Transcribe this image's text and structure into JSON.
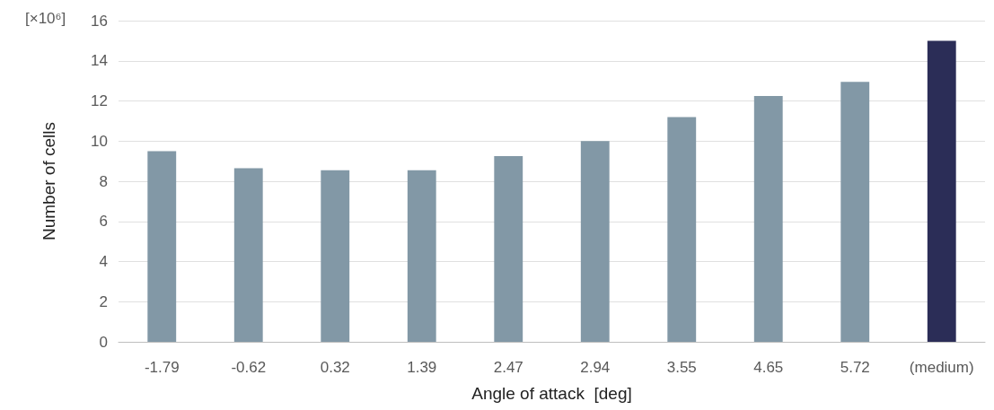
{
  "chart_data": {
    "type": "bar",
    "xlabel": "Angle of attack  [deg]",
    "ylabel": "Number of cells",
    "annotations": [
      "[×10⁶]"
    ],
    "categories": [
      "-1.79",
      "-0.62",
      "0.32",
      "1.39",
      "2.47",
      "2.94",
      "3.55",
      "4.65",
      "5.72",
      "(medium)"
    ],
    "values": [
      9.5,
      8.65,
      8.55,
      8.55,
      9.25,
      10.0,
      11.2,
      12.25,
      12.95,
      15.0
    ],
    "colors": [
      "#8298a6",
      "#8298a6",
      "#8298a6",
      "#8298a6",
      "#8298a6",
      "#8298a6",
      "#8298a6",
      "#8298a6",
      "#8298a6",
      "#2b2d57"
    ],
    "ylim": [
      0,
      16
    ],
    "yticks": [
      0,
      2,
      4,
      6,
      8,
      10,
      12,
      14,
      16
    ],
    "grid": "y"
  }
}
